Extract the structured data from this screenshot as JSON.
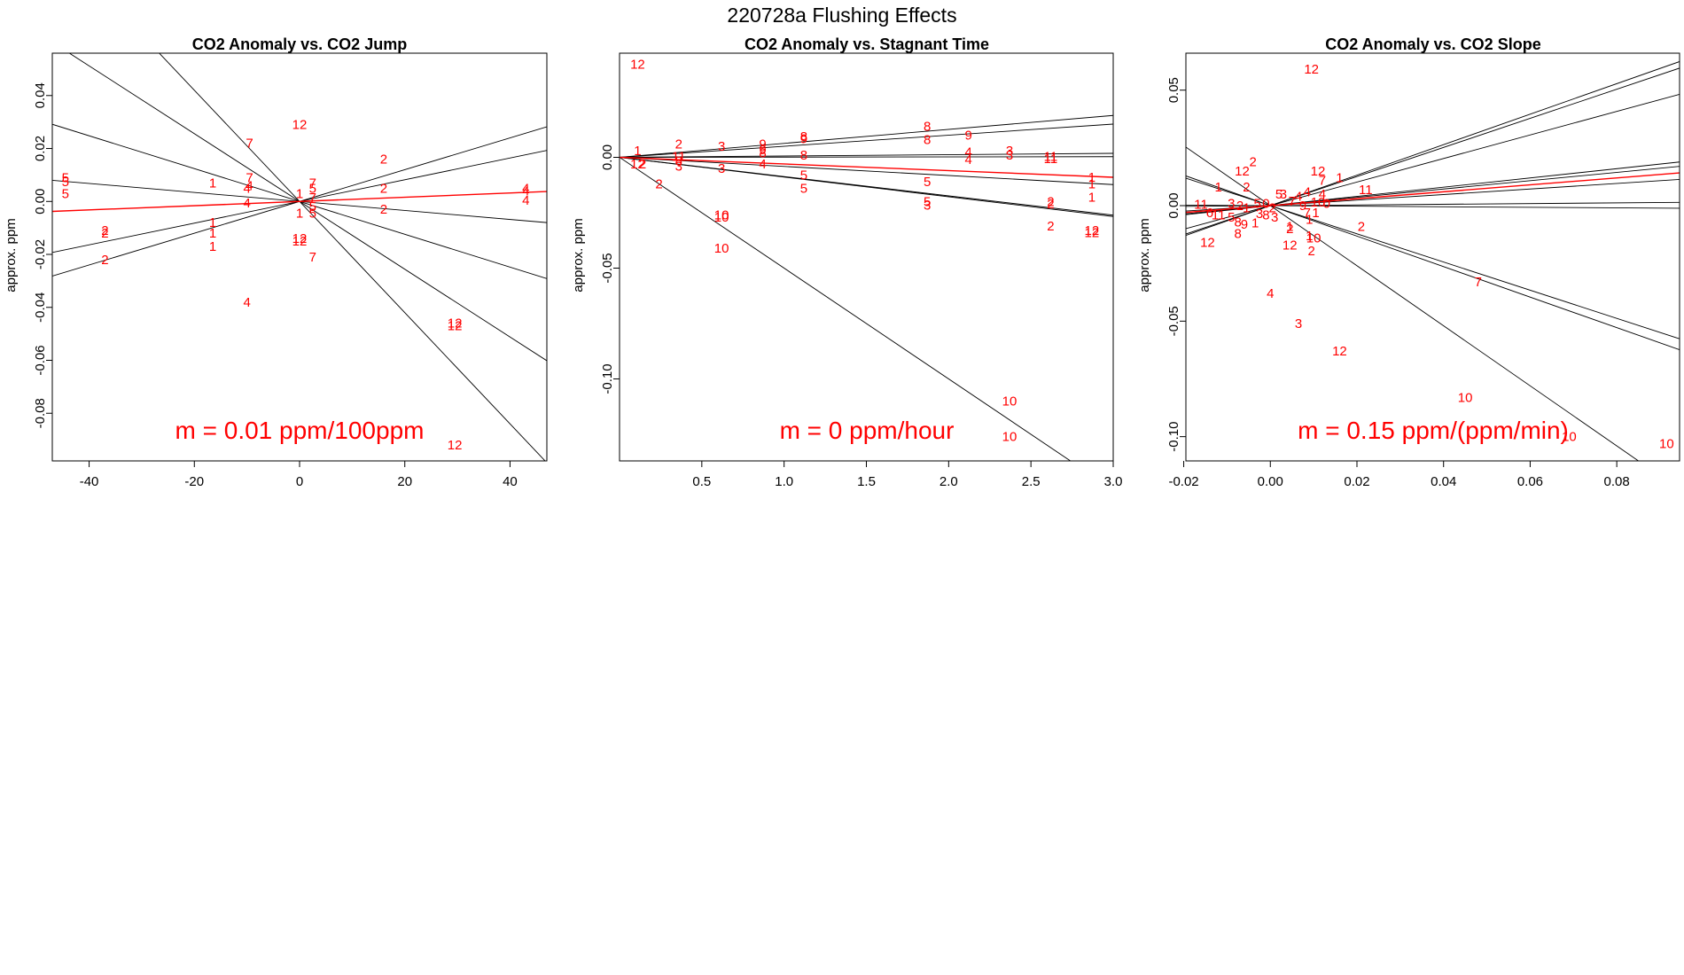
{
  "figure_title": "220728a   Flushing Effects",
  "chart_data": [
    {
      "type": "scatter",
      "title": "CO2 Anomaly vs. CO2 Jump",
      "xlabel": "",
      "ylabel": "approx. ppm",
      "xlim": [
        -47,
        47
      ],
      "ylim": [
        -0.098,
        0.056
      ],
      "xticks": [
        -40,
        -20,
        0,
        20,
        40
      ],
      "yticks": [
        -0.08,
        -0.06,
        -0.04,
        -0.02,
        0.0,
        0.02,
        0.04
      ],
      "annotation": "m = 0.01 ppm/100ppm",
      "points": [
        {
          "x": -44.5,
          "y": 0.009,
          "label": "5"
        },
        {
          "x": -44.5,
          "y": 0.0075,
          "label": "5"
        },
        {
          "x": -44.5,
          "y": 0.003,
          "label": "5"
        },
        {
          "x": -37,
          "y": -0.011,
          "label": "2"
        },
        {
          "x": -37,
          "y": -0.012,
          "label": "2"
        },
        {
          "x": -37,
          "y": -0.022,
          "label": "2"
        },
        {
          "x": -16.5,
          "y": 0.007,
          "label": "1"
        },
        {
          "x": -16.5,
          "y": -0.008,
          "label": "1"
        },
        {
          "x": -16.5,
          "y": -0.012,
          "label": "1"
        },
        {
          "x": -16.5,
          "y": -0.017,
          "label": "1"
        },
        {
          "x": -9.5,
          "y": 0.022,
          "label": "7"
        },
        {
          "x": -9.5,
          "y": 0.009,
          "label": "7"
        },
        {
          "x": -9.5,
          "y": 0.006,
          "label": "4"
        },
        {
          "x": -10,
          "y": 0.005,
          "label": "4"
        },
        {
          "x": -10,
          "y": -0.0005,
          "label": "4"
        },
        {
          "x": -10,
          "y": -0.038,
          "label": "4"
        },
        {
          "x": 0,
          "y": 0.029,
          "label": "12"
        },
        {
          "x": 0,
          "y": -0.014,
          "label": "12"
        },
        {
          "x": 0,
          "y": -0.015,
          "label": "12"
        },
        {
          "x": 0,
          "y": 0.003,
          "label": "1"
        },
        {
          "x": 0,
          "y": -0.0045,
          "label": "1"
        },
        {
          "x": 2.5,
          "y": 0.007,
          "label": "7"
        },
        {
          "x": 2.5,
          "y": 0.005,
          "label": "5"
        },
        {
          "x": 2.5,
          "y": 0.0015,
          "label": "7"
        },
        {
          "x": 2.5,
          "y": -0.002,
          "label": "5"
        },
        {
          "x": 2.5,
          "y": -0.0045,
          "label": "5"
        },
        {
          "x": 2.5,
          "y": -0.021,
          "label": "7"
        },
        {
          "x": 16,
          "y": 0.016,
          "label": "2"
        },
        {
          "x": 16,
          "y": 0.005,
          "label": "2"
        },
        {
          "x": 16,
          "y": -0.003,
          "label": "2"
        },
        {
          "x": 43,
          "y": 0.005,
          "label": "4"
        },
        {
          "x": 43,
          "y": 0.004,
          "label": "4"
        },
        {
          "x": 43,
          "y": 0.0005,
          "label": "4"
        },
        {
          "x": 29.5,
          "y": -0.046,
          "label": "12"
        },
        {
          "x": 29.5,
          "y": -0.047,
          "label": "12"
        },
        {
          "x": 29.5,
          "y": -0.092,
          "label": "12"
        }
      ],
      "lines": [
        {
          "slope": -0.00062,
          "color": "black"
        },
        {
          "slope": -0.00128,
          "color": "black"
        },
        {
          "slope": -0.0021,
          "color": "black"
        },
        {
          "slope": 0.0006,
          "color": "black"
        },
        {
          "slope": 0.00041,
          "color": "black"
        },
        {
          "slope": -0.00017,
          "color": "black"
        },
        {
          "slope": 8e-05,
          "color": "red"
        }
      ]
    },
    {
      "type": "scatter",
      "title": "CO2 Anomaly vs. Stagnant Time",
      "xlabel": "",
      "ylabel": "approx. ppm",
      "xlim": [
        0,
        3.0
      ],
      "ylim": [
        -0.137,
        0.047
      ],
      "xticks": [
        0.5,
        1.0,
        1.5,
        2.0,
        2.5,
        3.0
      ],
      "yticks": [
        -0.1,
        -0.05,
        0.0
      ],
      "annotation": "m = 0 ppm/hour",
      "points": [
        {
          "x": 0.11,
          "y": 0.042,
          "label": "12"
        },
        {
          "x": 0.11,
          "y": 0.003,
          "label": "1"
        },
        {
          "x": 0.11,
          "y": -0.003,
          "label": "12"
        },
        {
          "x": 0.14,
          "y": -0.003,
          "label": "2"
        },
        {
          "x": 0.24,
          "y": -0.012,
          "label": "2"
        },
        {
          "x": 0.36,
          "y": 0.006,
          "label": "2"
        },
        {
          "x": 0.36,
          "y": 0.0005,
          "label": "11"
        },
        {
          "x": 0.36,
          "y": -0.0015,
          "label": "8"
        },
        {
          "x": 0.36,
          "y": -0.004,
          "label": "3"
        },
        {
          "x": 0.62,
          "y": 0.005,
          "label": "3"
        },
        {
          "x": 0.62,
          "y": -0.005,
          "label": "3"
        },
        {
          "x": 0.62,
          "y": -0.026,
          "label": "10"
        },
        {
          "x": 0.62,
          "y": -0.027,
          "label": "10"
        },
        {
          "x": 0.62,
          "y": -0.041,
          "label": "10"
        },
        {
          "x": 0.87,
          "y": 0.006,
          "label": "9"
        },
        {
          "x": 0.87,
          "y": 0.0035,
          "label": "9"
        },
        {
          "x": 0.87,
          "y": 0.002,
          "label": "8"
        },
        {
          "x": 0.87,
          "y": -0.003,
          "label": "4"
        },
        {
          "x": 1.12,
          "y": 0.0095,
          "label": "8"
        },
        {
          "x": 1.12,
          "y": 0.0085,
          "label": "9"
        },
        {
          "x": 1.12,
          "y": 0.001,
          "label": "8"
        },
        {
          "x": 1.12,
          "y": -0.008,
          "label": "5"
        },
        {
          "x": 1.12,
          "y": -0.014,
          "label": "5"
        },
        {
          "x": 1.87,
          "y": 0.014,
          "label": "8"
        },
        {
          "x": 1.87,
          "y": 0.008,
          "label": "8"
        },
        {
          "x": 1.87,
          "y": -0.011,
          "label": "5"
        },
        {
          "x": 1.87,
          "y": -0.02,
          "label": "5"
        },
        {
          "x": 1.87,
          "y": -0.0215,
          "label": "3"
        },
        {
          "x": 2.12,
          "y": 0.01,
          "label": "9"
        },
        {
          "x": 2.12,
          "y": 0.0025,
          "label": "4"
        },
        {
          "x": 2.12,
          "y": -0.001,
          "label": "4"
        },
        {
          "x": 2.37,
          "y": 0.003,
          "label": "3"
        },
        {
          "x": 2.37,
          "y": 0.001,
          "label": "3"
        },
        {
          "x": 2.37,
          "y": -0.11,
          "label": "10"
        },
        {
          "x": 2.37,
          "y": -0.126,
          "label": "10"
        },
        {
          "x": 2.62,
          "y": 0.0005,
          "label": "11"
        },
        {
          "x": 2.62,
          "y": -0.0005,
          "label": "11"
        },
        {
          "x": 2.62,
          "y": -0.02,
          "label": "2"
        },
        {
          "x": 2.62,
          "y": -0.021,
          "label": "2"
        },
        {
          "x": 2.62,
          "y": -0.031,
          "label": "2"
        },
        {
          "x": 2.87,
          "y": -0.009,
          "label": "1"
        },
        {
          "x": 2.87,
          "y": -0.012,
          "label": "1"
        },
        {
          "x": 2.87,
          "y": -0.018,
          "label": "1"
        },
        {
          "x": 2.87,
          "y": -0.033,
          "label": "12"
        },
        {
          "x": 2.87,
          "y": -0.034,
          "label": "12"
        }
      ],
      "lines": [
        {
          "slope": 0.0063,
          "color": "black"
        },
        {
          "slope": 0.005,
          "color": "black"
        },
        {
          "slope": 0.0006,
          "color": "black"
        },
        {
          "slope": 0.0001,
          "color": "black"
        },
        {
          "slope": -0.0041,
          "color": "black"
        },
        {
          "slope": -0.0087,
          "color": "black"
        },
        {
          "slope": -0.0089,
          "color": "black"
        },
        {
          "slope": -0.05,
          "color": "black"
        },
        {
          "slope": -0.003,
          "color": "red"
        }
      ]
    },
    {
      "type": "scatter",
      "title": "CO2 Anomaly vs. CO2 Slope",
      "xlabel": "",
      "ylabel": "approx. ppm",
      "xlim": [
        -0.0195,
        0.0945
      ],
      "ylim": [
        -0.1105,
        0.066
      ],
      "xticks": [
        -0.02,
        0.0,
        0.02,
        0.04,
        0.06,
        0.08
      ],
      "yticks": [
        -0.1,
        -0.05,
        0.0,
        0.05
      ],
      "annotation": "m = 0.15 ppm/(ppm/min)",
      "points": [
        {
          "x": 0.0095,
          "y": 0.059,
          "label": "12"
        },
        {
          "x": -0.004,
          "y": 0.019,
          "label": "2"
        },
        {
          "x": -0.0065,
          "y": 0.015,
          "label": "12"
        },
        {
          "x": 0.011,
          "y": 0.015,
          "label": "12"
        },
        {
          "x": 0.016,
          "y": 0.012,
          "label": "1"
        },
        {
          "x": 0.012,
          "y": 0.011,
          "label": "7"
        },
        {
          "x": -0.012,
          "y": 0.008,
          "label": "1"
        },
        {
          "x": -0.0055,
          "y": 0.008,
          "label": "2"
        },
        {
          "x": 0.022,
          "y": 0.007,
          "label": "11"
        },
        {
          "x": 0.002,
          "y": 0.005,
          "label": "5"
        },
        {
          "x": 0.003,
          "y": 0.005,
          "label": "3"
        },
        {
          "x": 0.0085,
          "y": 0.006,
          "label": "4"
        },
        {
          "x": 0.0065,
          "y": 0.004,
          "label": "4"
        },
        {
          "x": 0.012,
          "y": 0.005,
          "label": "4"
        },
        {
          "x": -0.016,
          "y": 0.0005,
          "label": "11"
        },
        {
          "x": -0.014,
          "y": -0.003,
          "label": "6"
        },
        {
          "x": -0.012,
          "y": -0.004,
          "label": "11"
        },
        {
          "x": -0.009,
          "y": 0.001,
          "label": "3"
        },
        {
          "x": -0.007,
          "y": 0.0,
          "label": "2"
        },
        {
          "x": -0.0055,
          "y": -0.001,
          "label": "1"
        },
        {
          "x": -0.003,
          "y": 0.001,
          "label": "5"
        },
        {
          "x": -0.001,
          "y": 0.001,
          "label": "0"
        },
        {
          "x": 0.0005,
          "y": -0.001,
          "label": "2"
        },
        {
          "x": 0.005,
          "y": 0.002,
          "label": "7"
        },
        {
          "x": 0.0075,
          "y": 0.0,
          "label": "9"
        },
        {
          "x": 0.011,
          "y": 0.0015,
          "label": "10"
        },
        {
          "x": 0.013,
          "y": 0.001,
          "label": "0"
        },
        {
          "x": -0.009,
          "y": -0.005,
          "label": "5"
        },
        {
          "x": -0.0075,
          "y": -0.007,
          "label": "8"
        },
        {
          "x": -0.006,
          "y": -0.008,
          "label": "9"
        },
        {
          "x": -0.0035,
          "y": -0.0075,
          "label": "1"
        },
        {
          "x": -0.0025,
          "y": -0.0035,
          "label": "3"
        },
        {
          "x": -0.001,
          "y": -0.004,
          "label": "8"
        },
        {
          "x": 0.001,
          "y": -0.005,
          "label": "3"
        },
        {
          "x": 0.0045,
          "y": -0.009,
          "label": "1"
        },
        {
          "x": 0.0045,
          "y": -0.01,
          "label": "2"
        },
        {
          "x": 0.0085,
          "y": -0.003,
          "label": "7"
        },
        {
          "x": 0.009,
          "y": -0.006,
          "label": "1"
        },
        {
          "x": 0.0105,
          "y": -0.003,
          "label": "1"
        },
        {
          "x": -0.0075,
          "y": -0.012,
          "label": "8"
        },
        {
          "x": -0.0145,
          "y": -0.016,
          "label": "12"
        },
        {
          "x": 0.0045,
          "y": -0.017,
          "label": "12"
        },
        {
          "x": 0.009,
          "y": -0.013,
          "label": "1"
        },
        {
          "x": 0.0095,
          "y": -0.0195,
          "label": "2"
        },
        {
          "x": 0.01,
          "y": -0.014,
          "label": "10"
        },
        {
          "x": 0.021,
          "y": -0.009,
          "label": "2"
        },
        {
          "x": 0.0,
          "y": -0.038,
          "label": "4"
        },
        {
          "x": 0.0065,
          "y": -0.051,
          "label": "3"
        },
        {
          "x": 0.016,
          "y": -0.063,
          "label": "12"
        },
        {
          "x": 0.048,
          "y": -0.033,
          "label": "7"
        },
        {
          "x": 0.045,
          "y": -0.083,
          "label": "10"
        },
        {
          "x": 0.069,
          "y": -0.1,
          "label": "10"
        },
        {
          "x": 0.0915,
          "y": -0.103,
          "label": "10"
        }
      ],
      "lines": [
        {
          "slope": 0.66,
          "color": "black"
        },
        {
          "slope": 0.63,
          "color": "black"
        },
        {
          "slope": 0.51,
          "color": "black"
        },
        {
          "slope": 0.2,
          "color": "black"
        },
        {
          "slope": 0.18,
          "color": "black"
        },
        {
          "slope": 0.12,
          "color": "black"
        },
        {
          "slope": 0.015,
          "color": "black"
        },
        {
          "slope": -0.012,
          "color": "black"
        },
        {
          "slope": -0.61,
          "color": "black"
        },
        {
          "slope": -0.66,
          "color": "black"
        },
        {
          "slope": -1.3,
          "color": "black"
        },
        {
          "slope": 0.15,
          "color": "red"
        }
      ]
    }
  ]
}
